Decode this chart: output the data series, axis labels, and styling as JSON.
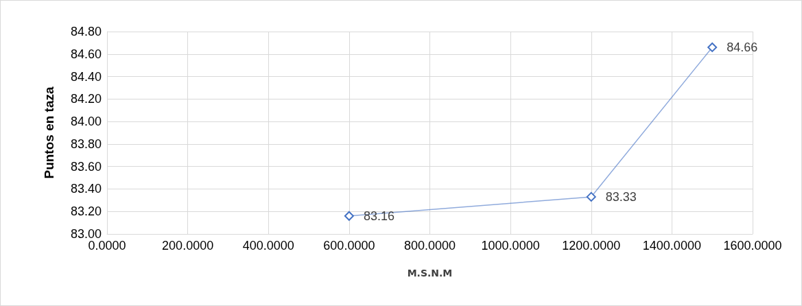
{
  "chart_data": {
    "type": "line",
    "xlabel": "M.S.N.M",
    "ylabel": "Puntos en taza",
    "x": [
      600,
      1200,
      1500
    ],
    "series": [
      {
        "color": "#4472c4",
        "values": [
          83.16,
          83.33,
          84.66
        ]
      }
    ],
    "xlim": [
      0,
      1600
    ],
    "xticks": [
      {
        "value": 0,
        "label": "0.0000"
      },
      {
        "value": 200,
        "label": "200.0000"
      },
      {
        "value": 400,
        "label": "400.0000"
      },
      {
        "value": 600,
        "label": "600.0000"
      },
      {
        "value": 800,
        "label": "800.0000"
      },
      {
        "value": 1000,
        "label": "1000.0000"
      },
      {
        "value": 1200,
        "label": "1200.0000"
      },
      {
        "value": 1400,
        "label": "1400.0000"
      },
      {
        "value": 1600,
        "label": "1600.0000"
      }
    ],
    "ylim": [
      83,
      84.8
    ],
    "yticks": [
      {
        "value": 83,
        "label": "83.00"
      },
      {
        "value": 83.2,
        "label": "83.20"
      },
      {
        "value": 83.4,
        "label": "83.40"
      },
      {
        "value": 83.6,
        "label": "83.60"
      },
      {
        "value": 83.8,
        "label": "83.80"
      },
      {
        "value": 84,
        "label": "84.00"
      },
      {
        "value": 84.2,
        "label": "84.20"
      },
      {
        "value": 84.4,
        "label": "84.40"
      },
      {
        "value": 84.6,
        "label": "84.60"
      },
      {
        "value": 84.8,
        "label": "84.80"
      }
    ],
    "grid": true,
    "marker": "diamond",
    "line_style": "solid",
    "data_labels": true
  }
}
